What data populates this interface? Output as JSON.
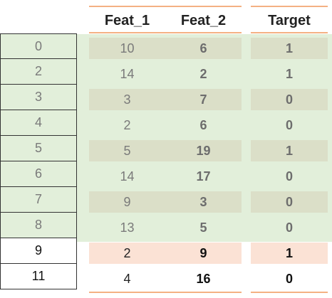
{
  "headers": {
    "feat1": "Feat_1",
    "feat2": "Feat_2",
    "target": "Target"
  },
  "rows": [
    {
      "index": "0",
      "feat1": "10",
      "feat2": "6",
      "target": "1",
      "group": "train"
    },
    {
      "index": "2",
      "feat1": "14",
      "feat2": "2",
      "target": "1",
      "group": "train"
    },
    {
      "index": "3",
      "feat1": "3",
      "feat2": "7",
      "target": "0",
      "group": "train"
    },
    {
      "index": "4",
      "feat1": "2",
      "feat2": "6",
      "target": "0",
      "group": "train"
    },
    {
      "index": "5",
      "feat1": "5",
      "feat2": "19",
      "target": "1",
      "group": "train"
    },
    {
      "index": "6",
      "feat1": "14",
      "feat2": "17",
      "target": "0",
      "group": "train"
    },
    {
      "index": "7",
      "feat1": "9",
      "feat2": "3",
      "target": "0",
      "group": "train"
    },
    {
      "index": "8",
      "feat1": "13",
      "feat2": "5",
      "target": "0",
      "group": "train"
    },
    {
      "index": "9",
      "feat1": "2",
      "feat2": "9",
      "target": "1",
      "group": "highlight"
    },
    {
      "index": "11",
      "feat1": "4",
      "feat2": "16",
      "target": "0",
      "group": "plain"
    }
  ],
  "colors": {
    "train_background": "#e2efda",
    "band_background": "#dbdfc8",
    "highlight_background": "#fbe2d5",
    "header_rule": "#f4b183"
  }
}
